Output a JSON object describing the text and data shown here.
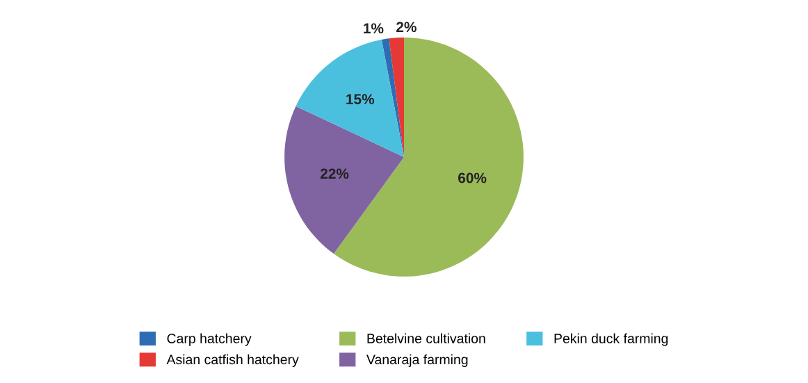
{
  "chart_data": {
    "type": "pie",
    "categories": [
      "Carp hatchery",
      "Asian catfish hatchery",
      "Betelvine cultivation",
      "Vanaraja farming",
      "Pekin duck farming"
    ],
    "values": [
      1,
      2,
      60,
      22,
      15
    ],
    "colors": [
      "#2e6db4",
      "#e53935",
      "#9bbb59",
      "#8064a2",
      "#4bc0de"
    ],
    "value_labels": [
      "1%",
      "2%",
      "60%",
      "22%",
      "15%"
    ],
    "legend": "bottom"
  }
}
